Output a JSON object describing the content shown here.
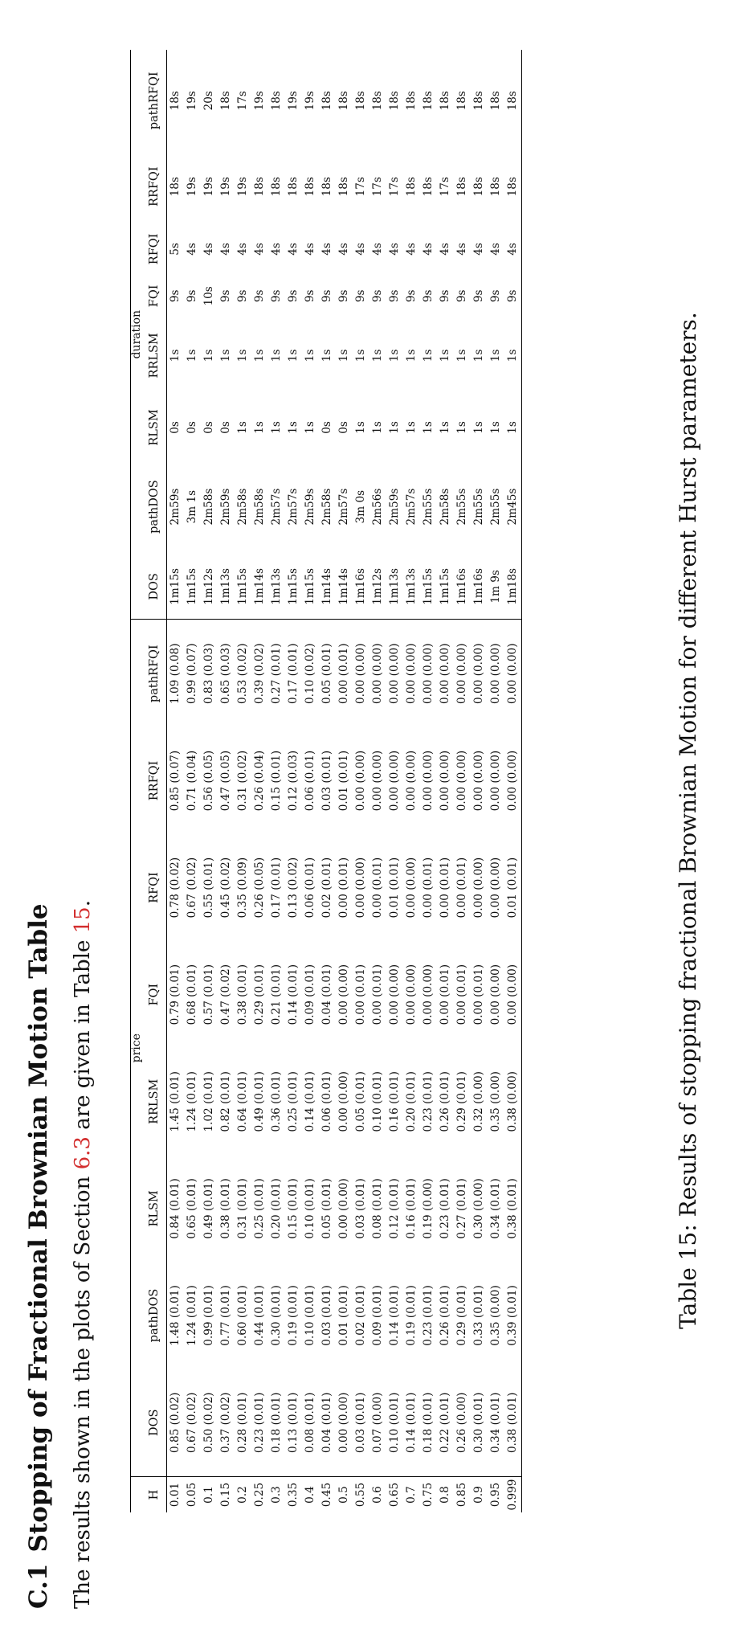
{
  "section": {
    "number": "C.1",
    "title": "Stopping of Fractional Brownian Motion Table"
  },
  "intro": {
    "before": "The results shown in the plots of Section ",
    "section_ref": "6.3",
    "middle": " are given in Table ",
    "table_ref": "15",
    "after": "."
  },
  "table": {
    "groups": {
      "price": "price",
      "duration": "duration"
    },
    "columns": [
      "H",
      "DOS",
      "pathDOS",
      "RLSM",
      "RRLSM",
      "FQI",
      "RFQI",
      "RRFQI",
      "pathRFQI",
      "DOS",
      "pathDOS",
      "RLSM",
      "RRLSM",
      "FQI",
      "RFQI",
      "RRFQI",
      "pathRFQI"
    ],
    "rows": [
      [
        "0.01",
        "0.85 (0.02)",
        "1.48 (0.01)",
        "0.84 (0.01)",
        "1.45 (0.01)",
        "0.79 (0.01)",
        "0.78 (0.02)",
        "0.85 (0.07)",
        "1.09 (0.08)",
        "1m15s",
        "2m59s",
        "0s",
        "1s",
        "9s",
        "5s",
        "18s",
        "18s"
      ],
      [
        "0.05",
        "0.67 (0.02)",
        "1.24 (0.01)",
        "0.65 (0.01)",
        "1.24 (0.01)",
        "0.68 (0.01)",
        "0.67 (0.02)",
        "0.71 (0.04)",
        "0.99 (0.07)",
        "1m15s",
        "3m 1s",
        "0s",
        "1s",
        "9s",
        "4s",
        "19s",
        "19s"
      ],
      [
        "0.1",
        "0.50 (0.02)",
        "0.99 (0.01)",
        "0.49 (0.01)",
        "1.02 (0.01)",
        "0.57 (0.01)",
        "0.55 (0.01)",
        "0.56 (0.05)",
        "0.83 (0.03)",
        "1m12s",
        "2m58s",
        "0s",
        "1s",
        "10s",
        "4s",
        "19s",
        "20s"
      ],
      [
        "0.15",
        "0.37 (0.02)",
        "0.77 (0.01)",
        "0.38 (0.01)",
        "0.82 (0.01)",
        "0.47 (0.02)",
        "0.45 (0.02)",
        "0.47 (0.05)",
        "0.65 (0.03)",
        "1m13s",
        "2m59s",
        "0s",
        "1s",
        "9s",
        "4s",
        "19s",
        "18s"
      ],
      [
        "0.2",
        "0.28 (0.01)",
        "0.60 (0.01)",
        "0.31 (0.01)",
        "0.64 (0.01)",
        "0.38 (0.01)",
        "0.35 (0.09)",
        "0.31 (0.02)",
        "0.53 (0.02)",
        "1m15s",
        "2m58s",
        "1s",
        "1s",
        "9s",
        "4s",
        "19s",
        "17s"
      ],
      [
        "0.25",
        "0.23 (0.01)",
        "0.44 (0.01)",
        "0.25 (0.01)",
        "0.49 (0.01)",
        "0.29 (0.01)",
        "0.26 (0.05)",
        "0.26 (0.04)",
        "0.39 (0.02)",
        "1m14s",
        "2m58s",
        "1s",
        "1s",
        "9s",
        "4s",
        "18s",
        "19s"
      ],
      [
        "0.3",
        "0.18 (0.01)",
        "0.30 (0.01)",
        "0.20 (0.01)",
        "0.36 (0.01)",
        "0.21 (0.01)",
        "0.17 (0.01)",
        "0.15 (0.01)",
        "0.27 (0.01)",
        "1m13s",
        "2m57s",
        "1s",
        "1s",
        "9s",
        "4s",
        "18s",
        "18s"
      ],
      [
        "0.35",
        "0.13 (0.01)",
        "0.19 (0.01)",
        "0.15 (0.01)",
        "0.25 (0.01)",
        "0.14 (0.01)",
        "0.13 (0.02)",
        "0.12 (0.03)",
        "0.17 (0.01)",
        "1m15s",
        "2m57s",
        "1s",
        "1s",
        "9s",
        "4s",
        "18s",
        "19s"
      ],
      [
        "0.4",
        "0.08 (0.01)",
        "0.10 (0.01)",
        "0.10 (0.01)",
        "0.14 (0.01)",
        "0.09 (0.01)",
        "0.06 (0.01)",
        "0.06 (0.01)",
        "0.10 (0.02)",
        "1m15s",
        "2m59s",
        "1s",
        "1s",
        "9s",
        "4s",
        "18s",
        "19s"
      ],
      [
        "0.45",
        "0.04 (0.01)",
        "0.03 (0.01)",
        "0.05 (0.01)",
        "0.06 (0.01)",
        "0.04 (0.01)",
        "0.02 (0.01)",
        "0.03 (0.01)",
        "0.05 (0.01)",
        "1m14s",
        "2m58s",
        "0s",
        "1s",
        "9s",
        "4s",
        "18s",
        "18s"
      ],
      [
        "0.5",
        "0.00 (0.00)",
        "0.01 (0.01)",
        "0.00 (0.00)",
        "0.00 (0.00)",
        "0.00 (0.00)",
        "0.00 (0.01)",
        "0.01 (0.01)",
        "0.00 (0.01)",
        "1m14s",
        "2m57s",
        "0s",
        "1s",
        "9s",
        "4s",
        "18s",
        "18s"
      ],
      [
        "0.55",
        "0.03 (0.01)",
        "0.02 (0.01)",
        "0.03 (0.01)",
        "0.05 (0.01)",
        "0.00 (0.01)",
        "0.00 (0.00)",
        "0.00 (0.00)",
        "0.00 (0.00)",
        "1m16s",
        "3m 0s",
        "1s",
        "1s",
        "9s",
        "4s",
        "17s",
        "18s"
      ],
      [
        "0.6",
        "0.07 (0.00)",
        "0.09 (0.01)",
        "0.08 (0.01)",
        "0.10 (0.01)",
        "0.00 (0.01)",
        "0.00 (0.01)",
        "0.00 (0.00)",
        "0.00 (0.00)",
        "1m12s",
        "2m56s",
        "1s",
        "1s",
        "9s",
        "4s",
        "17s",
        "18s"
      ],
      [
        "0.65",
        "0.10 (0.01)",
        "0.14 (0.01)",
        "0.12 (0.01)",
        "0.16 (0.01)",
        "0.00 (0.00)",
        "0.01 (0.01)",
        "0.00 (0.00)",
        "0.00 (0.00)",
        "1m13s",
        "2m59s",
        "1s",
        "1s",
        "9s",
        "4s",
        "17s",
        "18s"
      ],
      [
        "0.7",
        "0.14 (0.01)",
        "0.19 (0.01)",
        "0.16 (0.01)",
        "0.20 (0.01)",
        "0.00 (0.00)",
        "0.00 (0.00)",
        "0.00 (0.00)",
        "0.00 (0.00)",
        "1m13s",
        "2m57s",
        "1s",
        "1s",
        "9s",
        "4s",
        "18s",
        "18s"
      ],
      [
        "0.75",
        "0.18 (0.01)",
        "0.23 (0.01)",
        "0.19 (0.00)",
        "0.23 (0.01)",
        "0.00 (0.00)",
        "0.00 (0.01)",
        "0.00 (0.00)",
        "0.00 (0.00)",
        "1m15s",
        "2m55s",
        "1s",
        "1s",
        "9s",
        "4s",
        "18s",
        "18s"
      ],
      [
        "0.8",
        "0.22 (0.01)",
        "0.26 (0.01)",
        "0.23 (0.01)",
        "0.26 (0.01)",
        "0.00 (0.01)",
        "0.00 (0.01)",
        "0.00 (0.00)",
        "0.00 (0.00)",
        "1m15s",
        "2m58s",
        "1s",
        "1s",
        "9s",
        "4s",
        "17s",
        "18s"
      ],
      [
        "0.85",
        "0.26 (0.00)",
        "0.29 (0.01)",
        "0.27 (0.01)",
        "0.29 (0.01)",
        "0.00 (0.01)",
        "0.00 (0.01)",
        "0.00 (0.00)",
        "0.00 (0.00)",
        "1m16s",
        "2m55s",
        "1s",
        "1s",
        "9s",
        "4s",
        "18s",
        "18s"
      ],
      [
        "0.9",
        "0.30 (0.01)",
        "0.33 (0.01)",
        "0.30 (0.00)",
        "0.32 (0.00)",
        "0.00 (0.01)",
        "0.00 (0.00)",
        "0.00 (0.00)",
        "0.00 (0.00)",
        "1m16s",
        "2m55s",
        "1s",
        "1s",
        "9s",
        "4s",
        "18s",
        "18s"
      ],
      [
        "0.95",
        "0.34 (0.01)",
        "0.35 (0.00)",
        "0.34 (0.01)",
        "0.35 (0.00)",
        "0.00 (0.00)",
        "0.00 (0.00)",
        "0.00 (0.00)",
        "0.00 (0.00)",
        "1m 9s",
        "2m55s",
        "1s",
        "1s",
        "9s",
        "4s",
        "18s",
        "18s"
      ],
      [
        "0.999",
        "0.38 (0.01)",
        "0.39 (0.01)",
        "0.38 (0.01)",
        "0.38 (0.00)",
        "0.00 (0.00)",
        "0.01 (0.01)",
        "0.00 (0.00)",
        "0.00 (0.00)",
        "1m18s",
        "2m45s",
        "1s",
        "1s",
        "9s",
        "4s",
        "18s",
        "18s"
      ]
    ],
    "caption": "Table 15: Results of stopping fractional Brownian Motion for different Hurst parameters."
  }
}
